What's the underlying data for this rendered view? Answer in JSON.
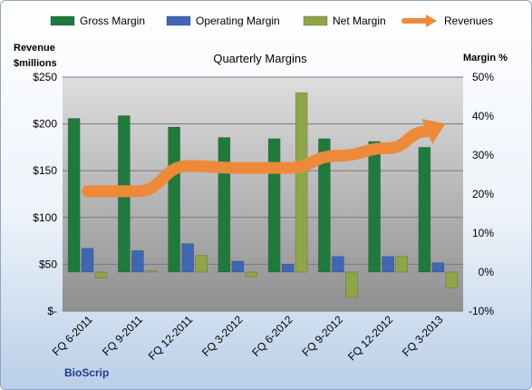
{
  "chart_data": {
    "type": "bar",
    "title": "Quarterly Margins",
    "left_axis_label": [
      "Revenue",
      "$millions"
    ],
    "right_axis_label": "Margin %",
    "categories": [
      "FQ 6-2011",
      "FQ 9-2011",
      "FQ 12-2011",
      "FQ 3-2012",
      "FQ 6-2012",
      "FQ 9-2012",
      "FQ 12-2012",
      "FQ 3-2013"
    ],
    "left_ticks": [
      "$-",
      "$50",
      "$100",
      "$150",
      "$200",
      "$250"
    ],
    "right_ticks": [
      "-10%",
      "0%",
      "10%",
      "20%",
      "30%",
      "40%",
      "50%"
    ],
    "ylim_revenue": [
      0,
      250
    ],
    "ylim_margin": [
      -10,
      50
    ],
    "series": [
      {
        "name": "Gross Margin",
        "kind": "bar",
        "axis": "margin",
        "color": "#1e7b3c",
        "values": [
          39.4,
          40.1,
          37.2,
          34.5,
          34.2,
          34.2,
          33.5,
          32.0
        ]
      },
      {
        "name": "Operating Margin",
        "kind": "bar",
        "axis": "margin",
        "color": "#3f66b3",
        "values": [
          6.1,
          5.5,
          7.3,
          2.8,
          2.0,
          4.0,
          4.0,
          2.4
        ]
      },
      {
        "name": "Net Margin",
        "kind": "bar",
        "axis": "margin",
        "color": "#8fa646",
        "values": [
          -1.5,
          0.3,
          4.3,
          -1.2,
          46.0,
          -6.5,
          4.0,
          -4.0
        ]
      },
      {
        "name": "Revenues",
        "kind": "line",
        "axis": "revenue",
        "color": "#ed8a3a",
        "values": [
          128,
          128,
          155,
          153,
          153,
          166,
          174,
          197
        ]
      }
    ],
    "legend_position": "top",
    "grid": true,
    "brand": "BioScrip"
  }
}
